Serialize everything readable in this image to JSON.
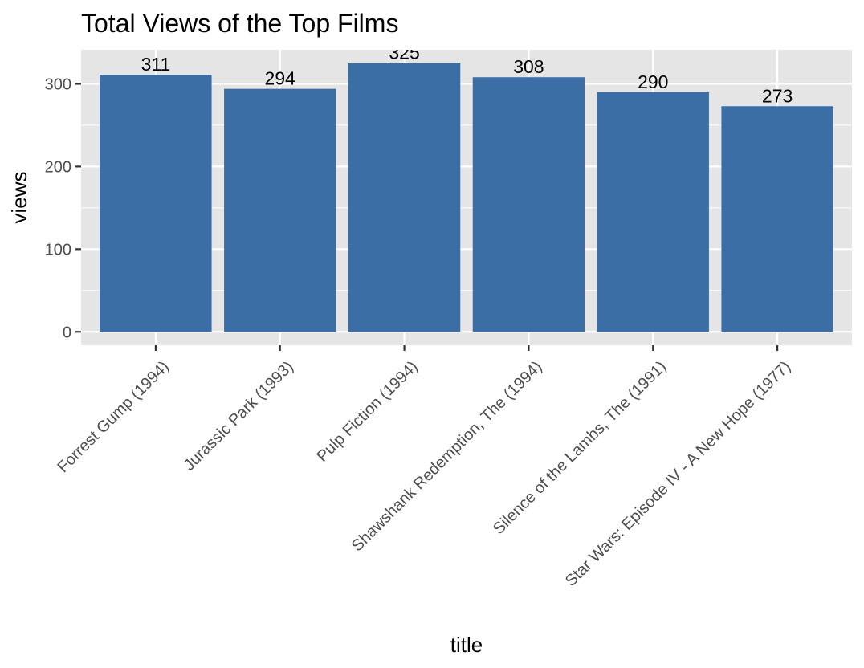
{
  "chart_data": {
    "type": "bar",
    "title": "Total Views of the Top Films",
    "xlabel": "title",
    "ylabel": "views",
    "categories": [
      "Forrest Gump (1994)",
      "Jurassic Park (1993)",
      "Pulp Fiction (1994)",
      "Shawshank Redemption, The (1994)",
      "Silence of the Lambs, The (1991)",
      "Star Wars: Episode IV - A New Hope (1977)"
    ],
    "values": [
      311,
      294,
      325,
      308,
      290,
      273
    ],
    "data_labels": [
      "311",
      "294",
      "325",
      "308",
      "290",
      "273"
    ],
    "yticks": [
      0,
      100,
      200,
      300
    ],
    "ylim": [
      -16.25,
      341.25
    ],
    "grid": true,
    "legend": "none",
    "colors": {
      "bar": "#3a6ea5",
      "panel_background": "#e5e5e5",
      "grid": "#ffffff",
      "tick_text": "#4d4d4d",
      "tick_mark": "#333333"
    }
  }
}
